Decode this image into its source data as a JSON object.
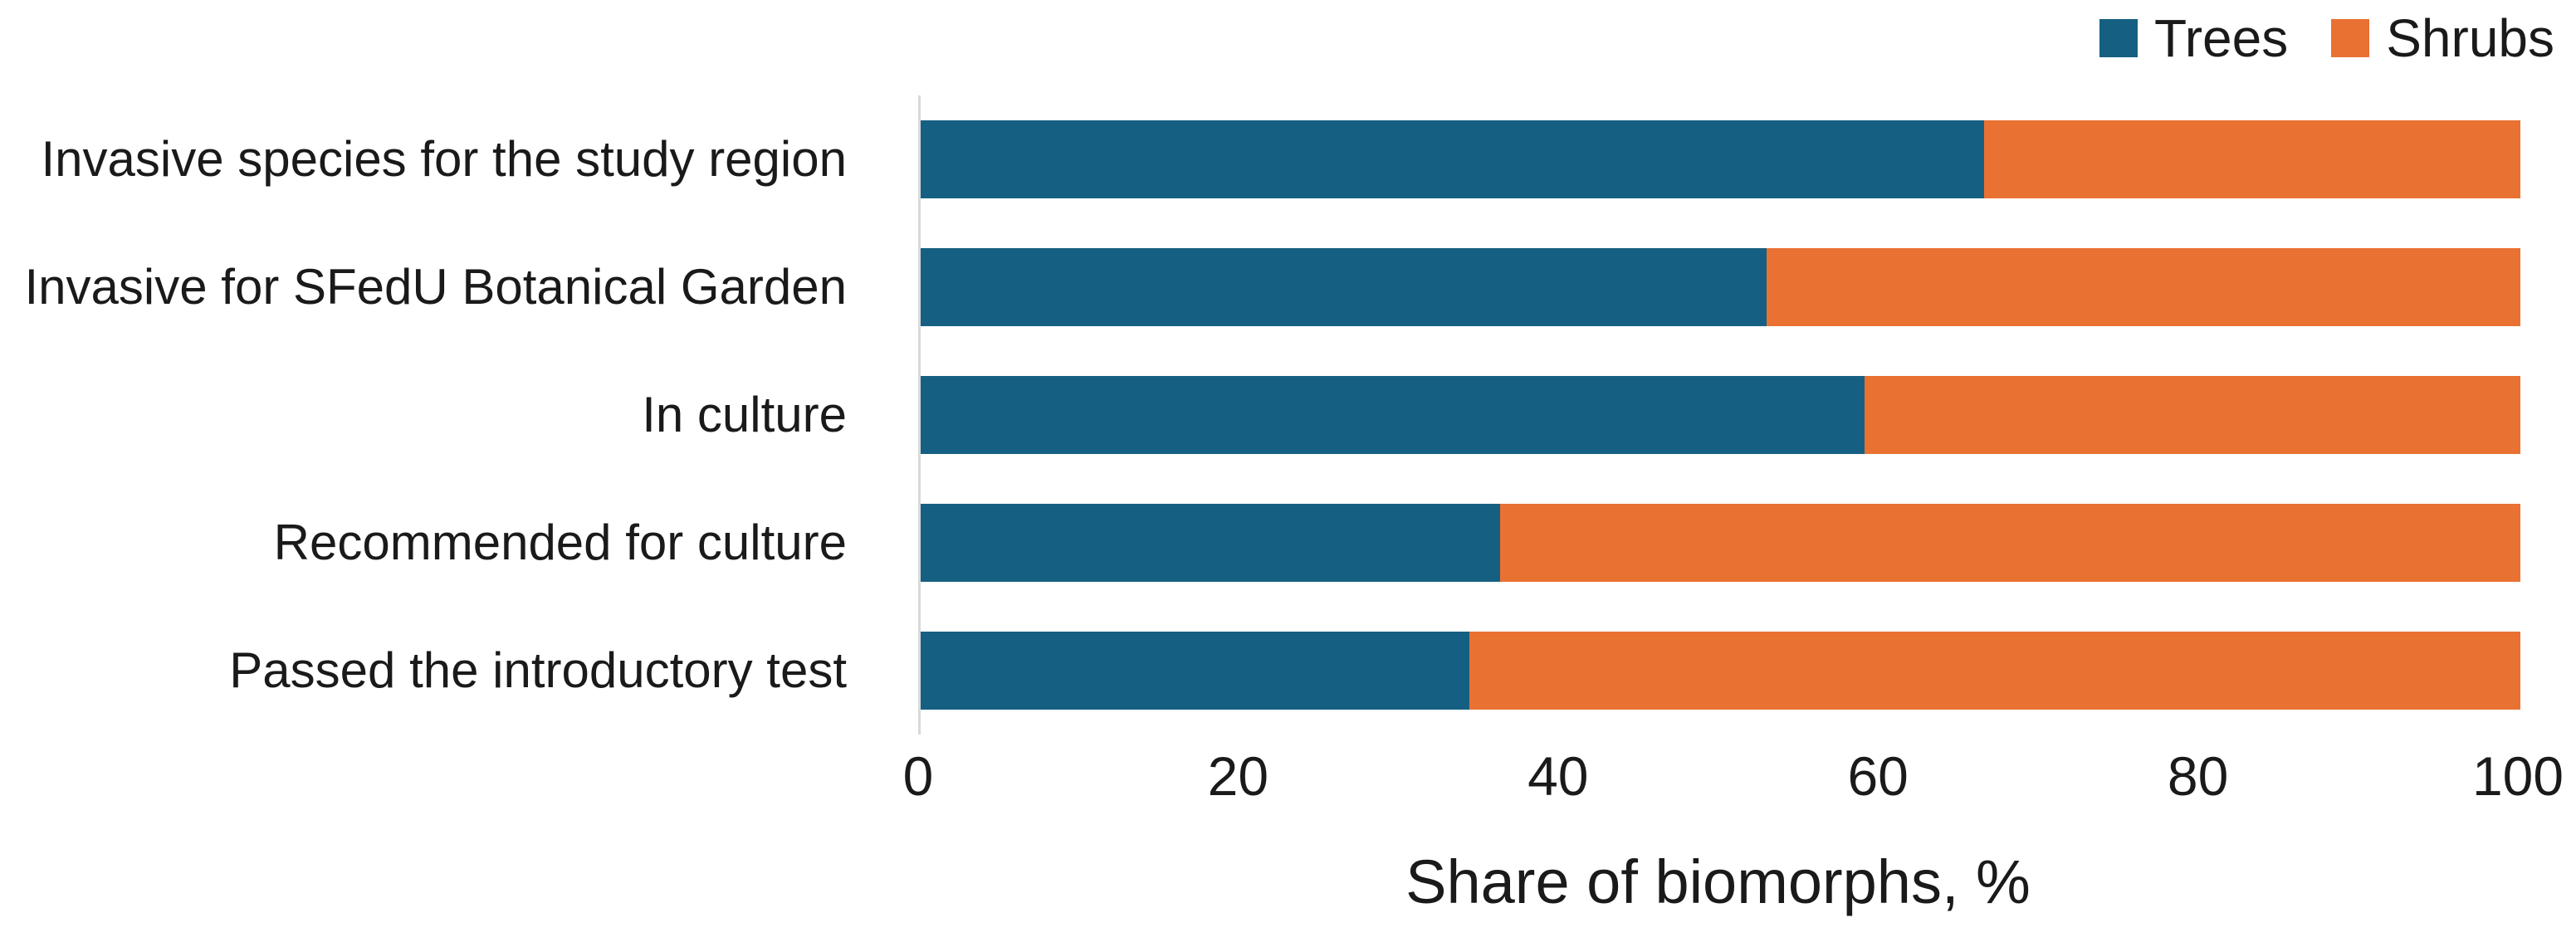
{
  "chart_data": {
    "type": "bar",
    "orientation": "horizontal",
    "stacked": true,
    "title": "",
    "xlabel": "Share of biomorphs, %",
    "ylabel": "",
    "xlim": [
      0,
      100
    ],
    "x_ticks": [
      "0",
      "20",
      "40",
      "60",
      "80",
      "100"
    ],
    "grid": false,
    "legend_position": "top-right",
    "categories": [
      "Invasive species for the study region",
      "Invasive for SFedU Botanical Garden",
      "In culture",
      "Recommended for culture",
      "Passed the introductory test"
    ],
    "series": [
      {
        "name": "Trees",
        "color": "#156082",
        "values": [
          66.5,
          52.9,
          59.0,
          36.2,
          34.3
        ]
      },
      {
        "name": "Shrubs",
        "color": "#E97132",
        "values": [
          33.5,
          47.1,
          41.0,
          63.8,
          65.7
        ]
      }
    ]
  },
  "legend": {
    "items": [
      {
        "label": "Trees",
        "color": "#156082"
      },
      {
        "label": "Shrubs",
        "color": "#E97132"
      }
    ]
  },
  "colors": {
    "trees": "#156082",
    "shrubs": "#E97132",
    "axis_line": "#d9d9d9",
    "text": "#1a1a1a"
  }
}
